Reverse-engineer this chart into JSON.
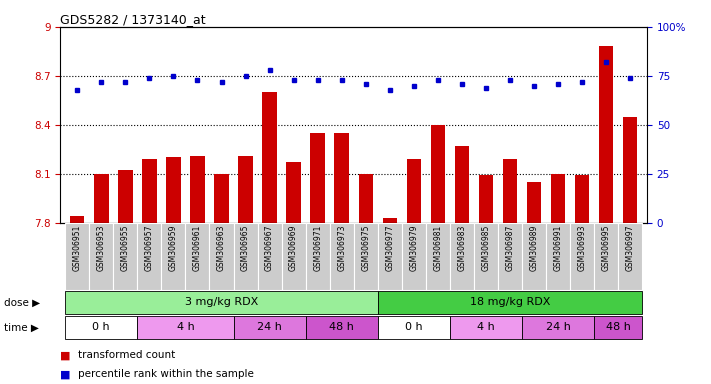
{
  "title": "GDS5282 / 1373140_at",
  "samples": [
    "GSM306951",
    "GSM306953",
    "GSM306955",
    "GSM306957",
    "GSM306959",
    "GSM306961",
    "GSM306963",
    "GSM306965",
    "GSM306967",
    "GSM306969",
    "GSM306971",
    "GSM306973",
    "GSM306975",
    "GSM306977",
    "GSM306979",
    "GSM306981",
    "GSM306983",
    "GSM306985",
    "GSM306987",
    "GSM306989",
    "GSM306991",
    "GSM306993",
    "GSM306995",
    "GSM306997"
  ],
  "bar_values": [
    7.84,
    8.1,
    8.12,
    8.19,
    8.2,
    8.21,
    8.1,
    8.21,
    8.6,
    8.17,
    8.35,
    8.35,
    8.1,
    7.83,
    8.19,
    8.4,
    8.27,
    8.09,
    8.19,
    8.05,
    8.1,
    8.09,
    8.88,
    8.45
  ],
  "percentile_values": [
    68,
    72,
    72,
    74,
    75,
    73,
    72,
    75,
    78,
    73,
    73,
    73,
    71,
    68,
    70,
    73,
    71,
    69,
    73,
    70,
    71,
    72,
    82,
    74
  ],
  "bar_color": "#cc0000",
  "percentile_color": "#0000cc",
  "ylim_left": [
    7.8,
    9.0
  ],
  "ylim_right": [
    0,
    100
  ],
  "yticks_left": [
    7.8,
    8.1,
    8.4,
    8.7,
    9.0
  ],
  "ytick_labels_left": [
    "7.8",
    "8.1",
    "8.4",
    "8.7",
    "9"
  ],
  "yticks_right": [
    0,
    25,
    50,
    75,
    100
  ],
  "ytick_labels_right": [
    "0",
    "25",
    "50",
    "75",
    "100%"
  ],
  "hlines": [
    8.1,
    8.4,
    8.7
  ],
  "dose_groups": [
    {
      "label": "3 mg/kg RDX",
      "start": 0,
      "end": 13,
      "color": "#99ee99"
    },
    {
      "label": "18 mg/kg RDX",
      "start": 13,
      "end": 24,
      "color": "#44cc44"
    }
  ],
  "time_groups": [
    {
      "label": "0 h",
      "start": 0,
      "end": 3,
      "color": "#ffffff"
    },
    {
      "label": "4 h",
      "start": 3,
      "end": 7,
      "color": "#ee99ee"
    },
    {
      "label": "24 h",
      "start": 7,
      "end": 10,
      "color": "#dd77dd"
    },
    {
      "label": "48 h",
      "start": 10,
      "end": 13,
      "color": "#cc55cc"
    },
    {
      "label": "0 h",
      "start": 13,
      "end": 16,
      "color": "#ffffff"
    },
    {
      "label": "4 h",
      "start": 16,
      "end": 19,
      "color": "#ee99ee"
    },
    {
      "label": "24 h",
      "start": 19,
      "end": 22,
      "color": "#dd77dd"
    },
    {
      "label": "48 h",
      "start": 22,
      "end": 24,
      "color": "#cc55cc"
    }
  ],
  "sample_box_color": "#cccccc",
  "legend_items": [
    {
      "label": "transformed count",
      "color": "#cc0000"
    },
    {
      "label": "percentile rank within the sample",
      "color": "#0000cc"
    }
  ]
}
